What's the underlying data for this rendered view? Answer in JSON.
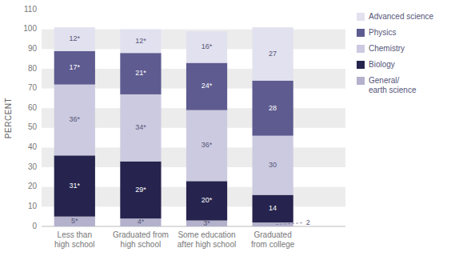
{
  "chart_data": {
    "type": "bar",
    "stacked": true,
    "grid": true,
    "data_labels": true,
    "y_label": "PERCENT",
    "categories": [
      "Less than\nhigh school",
      "Graduated from\nhigh school",
      "Some education\nafter high school",
      "Graduated\nfrom college"
    ],
    "series": [
      {
        "name": "General/\nearth science",
        "color": "#b3b1cc",
        "values": [
          5,
          4,
          3,
          2
        ],
        "value_labels": [
          "5*",
          "4*",
          "3*",
          "2"
        ]
      },
      {
        "name": "Biology",
        "color": "#26244e",
        "values": [
          31,
          29,
          20,
          14
        ],
        "value_labels": [
          "31*",
          "29*",
          "20*",
          "14"
        ]
      },
      {
        "name": "Chemistry",
        "color": "#cccae0",
        "values": [
          36,
          34,
          36,
          30
        ],
        "value_labels": [
          "36*",
          "34*",
          "36*",
          "30"
        ]
      },
      {
        "name": "Physics",
        "color": "#5e5b90",
        "values": [
          17,
          21,
          24,
          28
        ],
        "value_labels": [
          "17*",
          "21*",
          "24*",
          "28"
        ]
      },
      {
        "name": "Advanced science",
        "color": "#e2e1ef",
        "values": [
          12,
          12,
          16,
          27
        ],
        "value_labels": [
          "12*",
          "12*",
          "16*",
          "27"
        ]
      }
    ],
    "ylim": [
      0,
      110
    ],
    "yticks": [
      0,
      10,
      20,
      30,
      40,
      50,
      60,
      70,
      80,
      90,
      100,
      110
    ]
  }
}
